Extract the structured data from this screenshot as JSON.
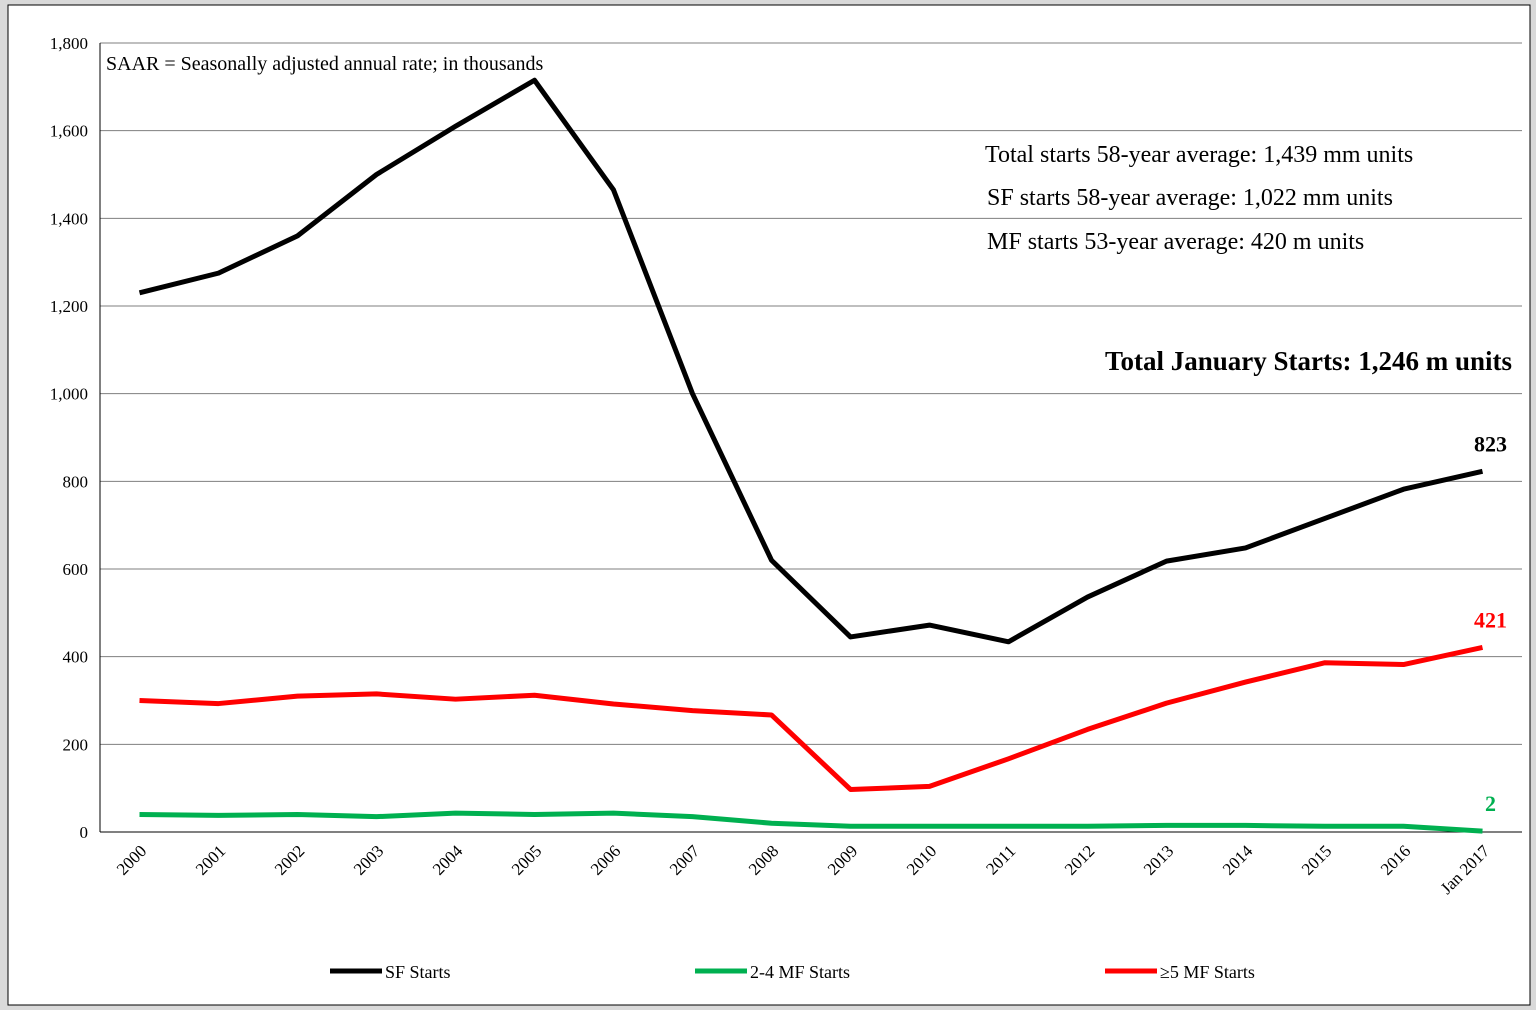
{
  "chart_data": {
    "type": "line",
    "annotations": [
      "SAAR = Seasonally adjusted annual rate; in thousands",
      "Total starts 58-year average: 1,439 mm units",
      "SF starts 58-year average: 1,022 mm units",
      "MF starts 53-year average: 420 m units",
      "Total January Starts: 1,246 m units"
    ],
    "categories": [
      "2000",
      "2001",
      "2002",
      "2003",
      "2004",
      "2005",
      "2006",
      "2007",
      "2008",
      "2009",
      "2010",
      "2011",
      "2012",
      "2013",
      "2014",
      "2015",
      "2016",
      "Jan 2017"
    ],
    "series": [
      {
        "name": "SF Starts",
        "color": "#000000",
        "values": [
          1230,
          1275,
          1360,
          1500,
          1610,
          1715,
          1465,
          1000,
          620,
          445,
          472,
          434,
          536,
          618,
          648,
          715,
          782,
          823
        ]
      },
      {
        "name": "2-4 MF Starts",
        "color": "#00b050",
        "values": [
          40,
          38,
          40,
          35,
          43,
          40,
          43,
          35,
          20,
          13,
          13,
          13,
          13,
          15,
          15,
          13,
          13,
          2
        ]
      },
      {
        "name": "≥5 MF Starts",
        "color": "#ff0000",
        "values": [
          300,
          293,
          310,
          315,
          303,
          312,
          292,
          277,
          267,
          97,
          104,
          167,
          234,
          294,
          342,
          386,
          382,
          421
        ]
      }
    ],
    "ylim": [
      0,
      1800
    ],
    "yticks": [
      0,
      200,
      400,
      600,
      800,
      {
        "value": 1000,
        "label": "1,000"
      },
      {
        "value": 1200,
        "label": "1,200"
      },
      {
        "value": 1400,
        "label": "1,400"
      },
      {
        "value": 1600,
        "label": "1,600"
      },
      {
        "value": 1800,
        "label": "1,800"
      }
    ],
    "grid": true,
    "legend": "bottom"
  }
}
